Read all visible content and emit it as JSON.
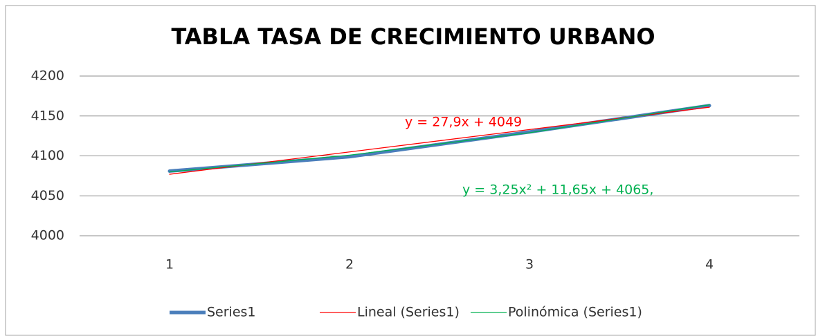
{
  "chart_data": {
    "type": "line",
    "title": "TABLA TASA DE CRECIMIENTO URBANO",
    "categories": [
      "1",
      "2",
      "3",
      "4"
    ],
    "series": [
      {
        "name": "Series1",
        "color": "#4a7ebb",
        "values": [
          4081,
          4099,
          4130,
          4163
        ]
      },
      {
        "name": "Lineal (Series1)",
        "color": "#ff0000",
        "values": [
          4077,
          4105,
          4133,
          4161
        ]
      },
      {
        "name": "Polinómica (Series1)",
        "color": "#00b050",
        "values": [
          4080,
          4101,
          4129,
          4164
        ]
      }
    ],
    "annotations": [
      "y = 27,9x + 4049",
      "y = 3,25x² + 11,65x + 4065,"
    ],
    "ylim": [
      4000,
      4200
    ],
    "yticks": [
      4000,
      4050,
      4100,
      4150,
      4200
    ],
    "grid": true,
    "legend": "bottom"
  }
}
